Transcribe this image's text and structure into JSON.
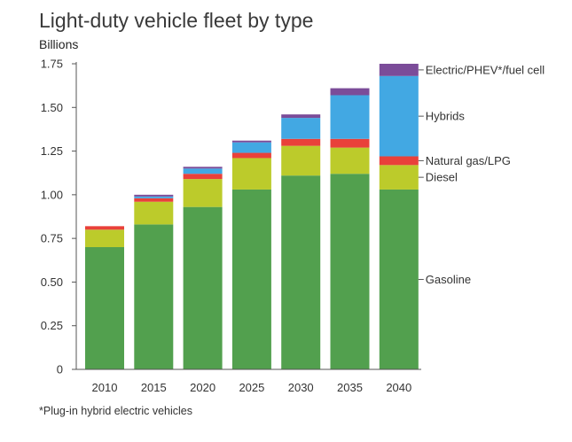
{
  "title": "Light-duty vehicle fleet by type",
  "unit_label": "Billions",
  "footnote": "*Plug-in hybrid electric vehicles",
  "chart_data": {
    "type": "bar",
    "stacked": true,
    "categories": [
      "2010",
      "2015",
      "2020",
      "2025",
      "2030",
      "2035",
      "2040"
    ],
    "ylim": [
      0,
      1.75
    ],
    "yticks": [
      0,
      0.25,
      0.5,
      0.75,
      1.0,
      1.25,
      1.5,
      1.75
    ],
    "ytick_labels": [
      "0",
      "0.25",
      "0.50",
      "0.75",
      "1.00",
      "1.25",
      "1.50",
      "1.75"
    ],
    "ylabel": "Billions",
    "xlabel": "",
    "series": [
      {
        "name": "Gasoline",
        "color": "#52a04e",
        "values": [
          0.7,
          0.83,
          0.93,
          1.03,
          1.11,
          1.12,
          1.03
        ]
      },
      {
        "name": "Diesel",
        "color": "#bccb2b",
        "values": [
          0.1,
          0.13,
          0.16,
          0.18,
          0.17,
          0.15,
          0.14
        ]
      },
      {
        "name": "Natural gas/LPG",
        "color": "#e9413a",
        "values": [
          0.02,
          0.02,
          0.03,
          0.03,
          0.04,
          0.05,
          0.05
        ]
      },
      {
        "name": "Hybrids",
        "color": "#42a8e3",
        "values": [
          0.0,
          0.01,
          0.03,
          0.06,
          0.12,
          0.25,
          0.46
        ]
      },
      {
        "name": "Electric/PHEV*/fuel cell",
        "color": "#7b4c99",
        "values": [
          0.0,
          0.01,
          0.01,
          0.01,
          0.02,
          0.04,
          0.07
        ]
      }
    ],
    "legend_position": "right"
  }
}
